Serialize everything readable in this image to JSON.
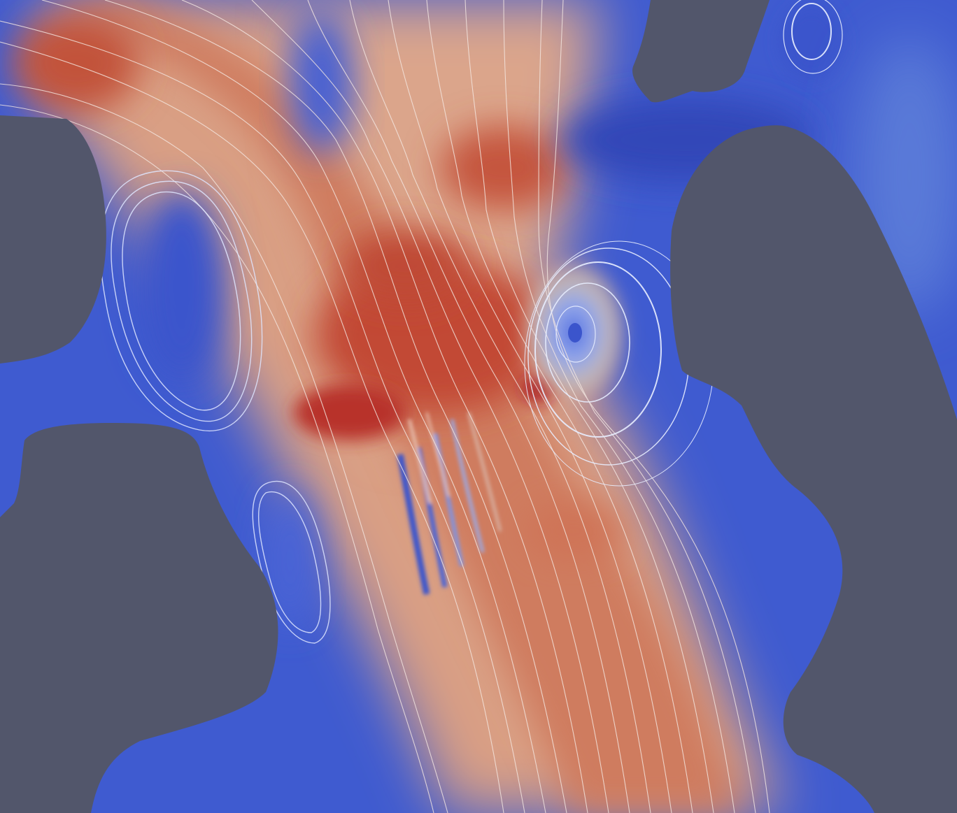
{
  "scene": {
    "kind": "cfd-streamline-visualization",
    "colormap": "cool-to-warm",
    "colors": {
      "background_solid": "#52566b",
      "field_low": "#3b4cc0",
      "field_mid": "#dddddd",
      "field_high": "#b40426",
      "streamline": "#f4f4f4"
    }
  }
}
